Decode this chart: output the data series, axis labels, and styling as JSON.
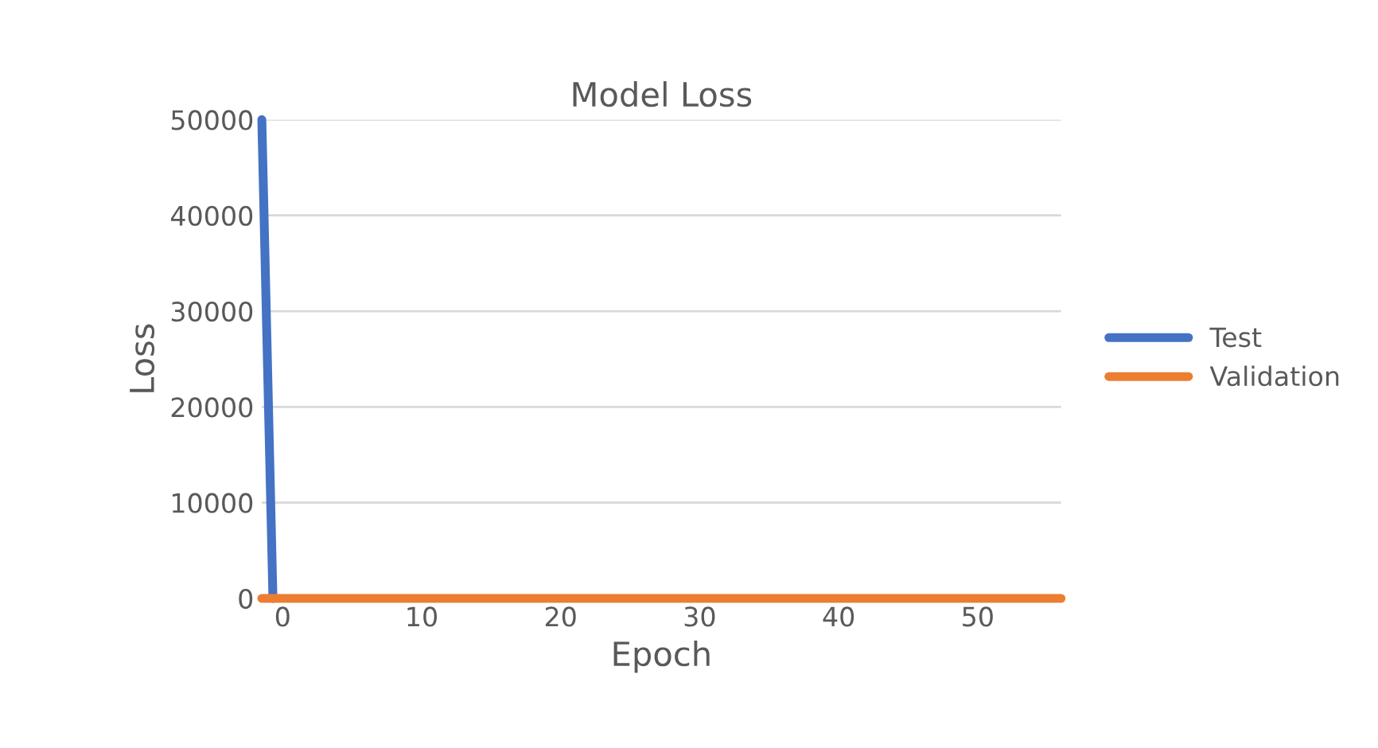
{
  "chart_data": {
    "type": "line",
    "title": "Model Loss",
    "xlabel": "Epoch",
    "ylabel": "Loss",
    "series": [
      {
        "name": "Test",
        "color": "#4472c4",
        "x": [
          -1.5,
          -0.7
        ],
        "values": [
          50000,
          0
        ]
      },
      {
        "name": "Validation",
        "color": "#ed7d31",
        "x": [
          -1.5,
          56
        ],
        "values": [
          0,
          0
        ]
      }
    ],
    "xlim": [
      -1.5,
      56
    ],
    "xticks": [
      0,
      10,
      20,
      30,
      40,
      50
    ],
    "ylim": [
      0,
      50000
    ],
    "yticks": [
      0,
      10000,
      20000,
      30000,
      40000,
      50000
    ],
    "grid": "y",
    "legend": "right"
  }
}
